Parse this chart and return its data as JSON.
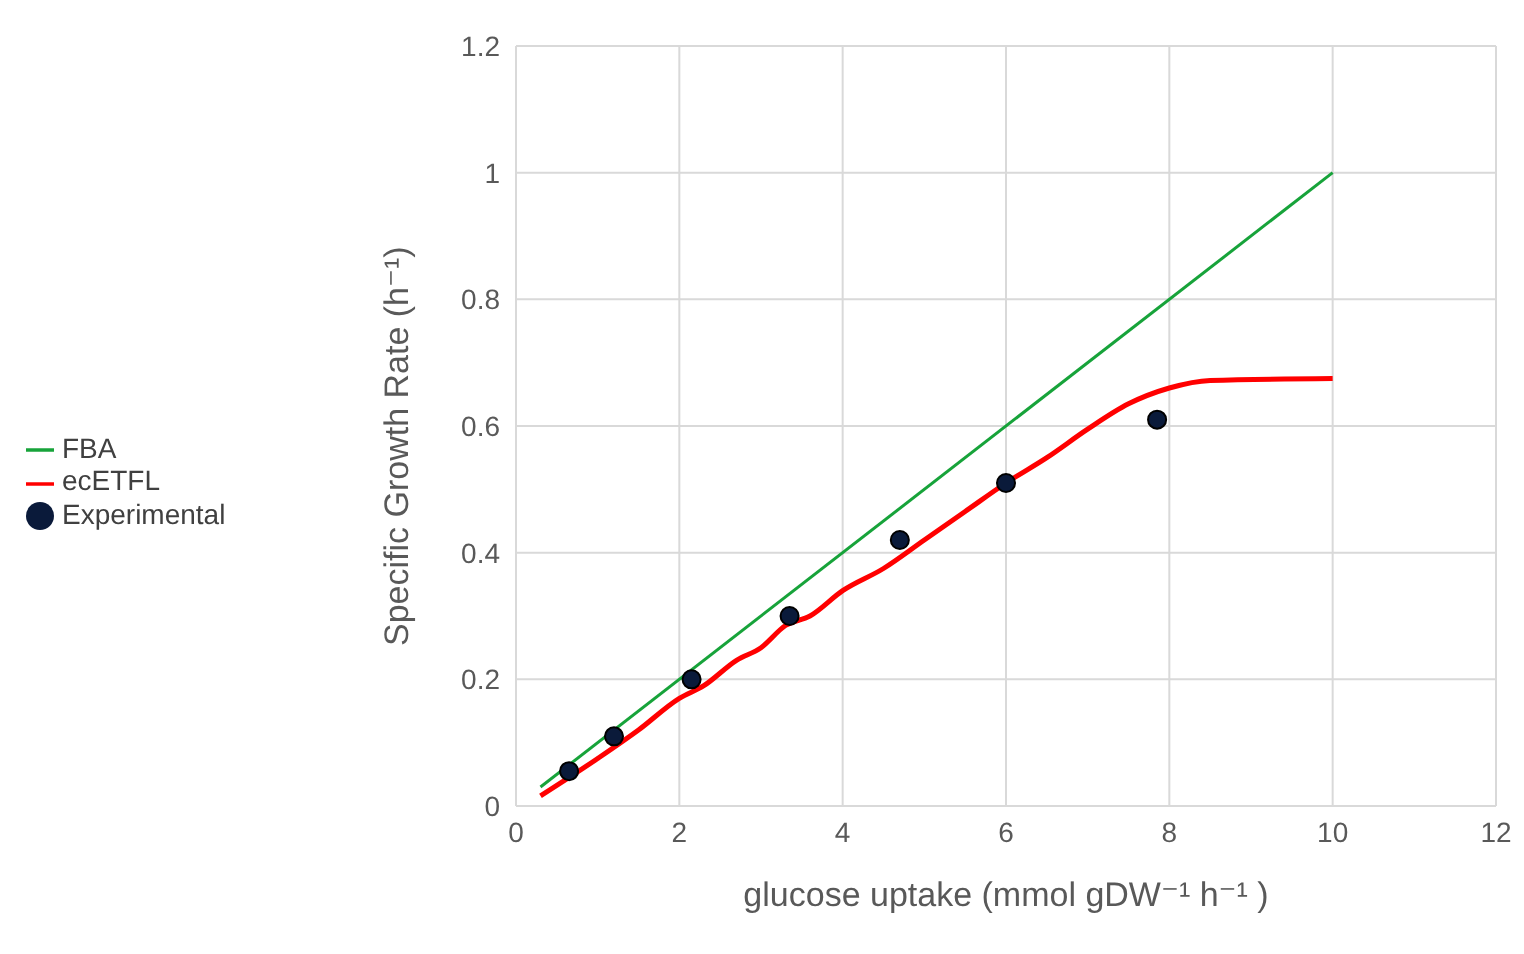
{
  "chart_data": {
    "type": "line",
    "xlabel": "glucose uptake (mmol gDW⁻¹  h⁻¹ )",
    "ylabel": "Specific Growth Rate (h⁻¹)",
    "xlim": [
      0,
      12
    ],
    "xticks": [
      0,
      2,
      4,
      6,
      8,
      10,
      12
    ],
    "ylim": [
      0,
      1.2
    ],
    "yticks": [
      0,
      0.2,
      0.4,
      0.6,
      0.8,
      1,
      1.2
    ],
    "grid": true,
    "legend": "left",
    "series": [
      {
        "name": "FBA",
        "color": "#17a33a",
        "marker": "none",
        "x": [
          0.3,
          10
        ],
        "values": [
          0.03,
          1.0
        ]
      },
      {
        "name": "ecETFL",
        "color": "#ff0000",
        "marker": "none",
        "x": [
          0.3,
          1,
          1.5,
          2,
          2.3,
          2.7,
          3,
          3.3,
          3.6,
          4,
          4.5,
          5,
          5.5,
          6,
          6.5,
          7,
          7.5,
          8,
          8.5,
          10
        ],
        "values": [
          0.016,
          0.075,
          0.12,
          0.17,
          0.19,
          0.23,
          0.25,
          0.285,
          0.3,
          0.34,
          0.375,
          0.42,
          0.465,
          0.51,
          0.55,
          0.595,
          0.635,
          0.66,
          0.672,
          0.675
        ]
      },
      {
        "name": "Experimental",
        "type": "scatter",
        "color": "#0a1a3a",
        "marker": "circle",
        "x": [
          0.65,
          1.2,
          2.15,
          3.35,
          4.7,
          6,
          7.85
        ],
        "values": [
          0.055,
          0.11,
          0.2,
          0.3,
          0.42,
          0.51,
          0.61
        ]
      }
    ]
  }
}
